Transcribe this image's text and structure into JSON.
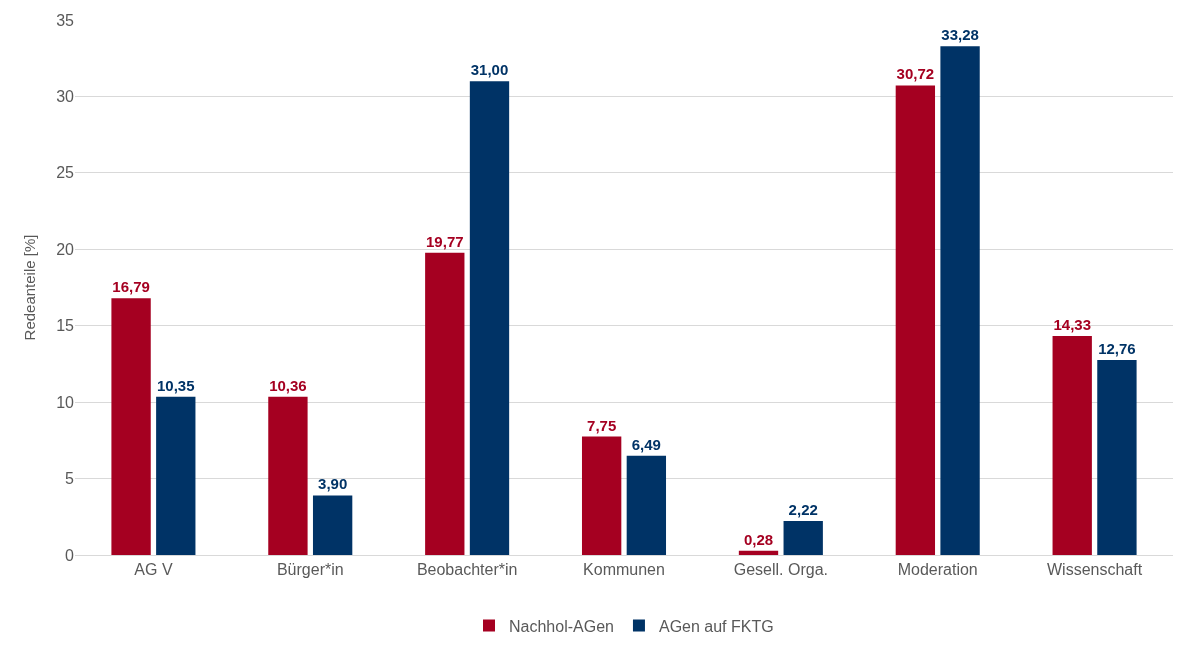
{
  "chart_data": {
    "type": "bar",
    "ylabel": "Redeanteile [%]",
    "categories": [
      "AG V",
      "Bürger*in",
      "Beobachter*in",
      "Kommunen",
      "Gesell. Orga.",
      "Moderation",
      "Wissenschaft"
    ],
    "series": [
      {
        "name": "Nachhol-AGen",
        "color": "#a50021",
        "values": [
          16.79,
          10.36,
          19.77,
          7.75,
          0.28,
          30.72,
          14.33
        ],
        "value_labels": [
          "16,79",
          "10,36",
          "19,77",
          "7,75",
          "0,28",
          "30,72",
          "14,33"
        ]
      },
      {
        "name": "AGen auf FKTG",
        "color": "#003366",
        "values": [
          10.35,
          3.9,
          31.0,
          6.49,
          2.22,
          33.28,
          12.76
        ],
        "value_labels": [
          "10,35",
          "3,90",
          "31,00",
          "6,49",
          "2,22",
          "33,28",
          "12,76"
        ]
      }
    ],
    "ylim": [
      0,
      35
    ],
    "yticks": [
      0,
      5,
      10,
      15,
      20,
      25,
      30,
      35
    ],
    "grid": "y",
    "legend": "bottom"
  }
}
